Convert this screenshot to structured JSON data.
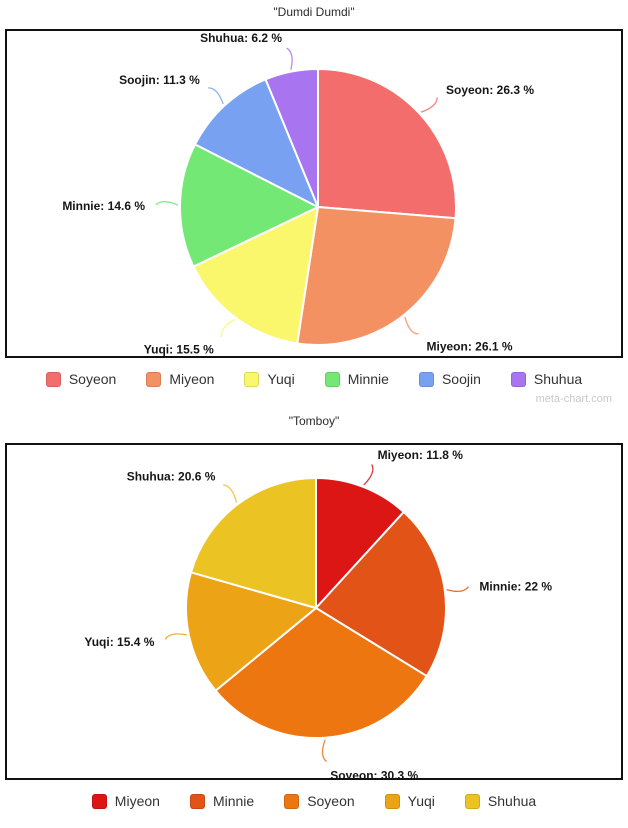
{
  "page": {
    "watermark": "meta-chart.com"
  },
  "chart_data": [
    {
      "type": "pie",
      "title": "\"Dumdi Dumdi\"",
      "legend_position": "bottom",
      "label_suffix": " %",
      "slices": [
        {
          "name": "Soyeon",
          "value": 26.3,
          "color": "#f46d6d"
        },
        {
          "name": "Miyeon",
          "value": 26.1,
          "color": "#f49163"
        },
        {
          "name": "Yuqi",
          "value": 15.5,
          "color": "#fbf76d"
        },
        {
          "name": "Minnie",
          "value": 14.6,
          "color": "#73e874"
        },
        {
          "name": "Soojin",
          "value": 11.3,
          "color": "#78a2f1"
        },
        {
          "name": "Shuhua",
          "value": 6.2,
          "color": "#a874f0"
        }
      ]
    },
    {
      "type": "pie",
      "title": "\"Tomboy\"",
      "legend_position": "bottom",
      "label_suffix": " %",
      "slices": [
        {
          "name": "Miyeon",
          "value": 11.8,
          "color": "#dc1515"
        },
        {
          "name": "Minnie",
          "value": 22,
          "color": "#e25317"
        },
        {
          "name": "Soyeon",
          "value": 30.3,
          "color": "#ee7611"
        },
        {
          "name": "Yuqi",
          "value": 15.4,
          "color": "#eca315"
        },
        {
          "name": "Shuhua",
          "value": 20.6,
          "color": "#ebc424"
        }
      ]
    }
  ]
}
